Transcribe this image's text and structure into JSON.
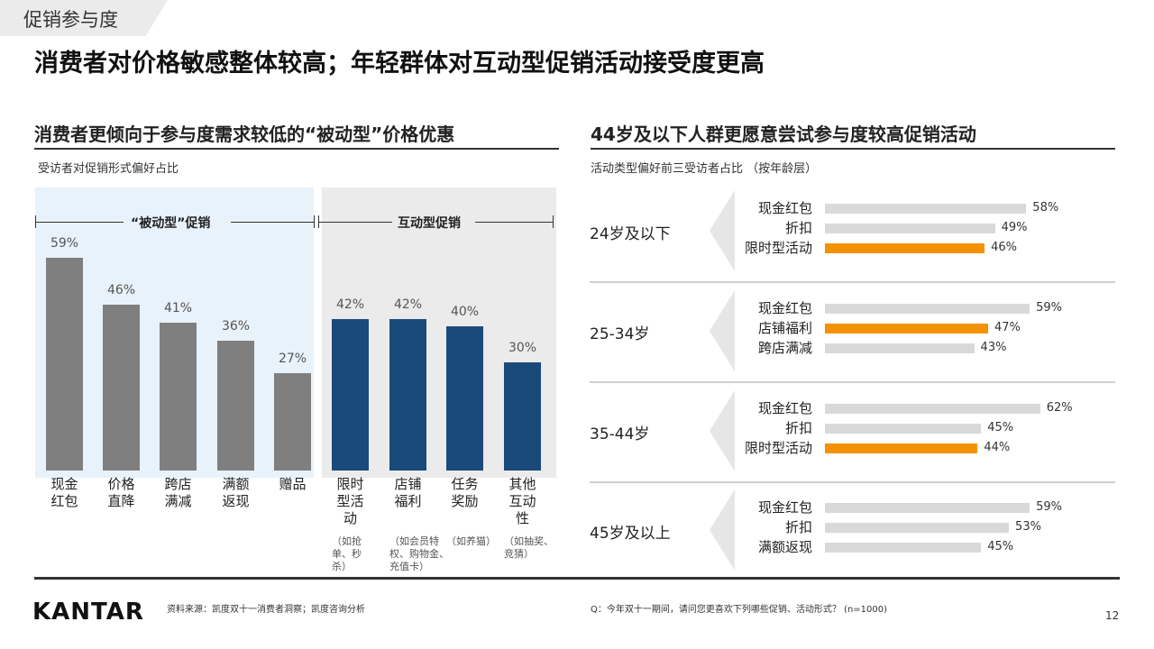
{
  "section_tag": "促销参与度",
  "headline": "消费者对价格敏感整体较高；年轻群体对互动型促销活动接受度更高",
  "left": {
    "title": "消费者更倾向于参与度需求较低的“被动型”价格优惠",
    "caption": "受访者对促销形式偏好占比",
    "group_passive": "“被动型”促销",
    "group_interactive": "互动型促销"
  },
  "right": {
    "title": "44岁及以下人群更愿意尝试参与度较高促销活动",
    "caption": "活动类型偏好前三受访者占比 （按年龄层）"
  },
  "colors": {
    "passive_bar": "#7f7f7f",
    "interactive_bar": "#1a4a7a",
    "highlight_bar": "#f39200",
    "neutral_bar": "#d9d9d9"
  },
  "chart_data": [
    {
      "type": "bar",
      "title": "受访者对促销形式偏好占比",
      "categories": [
        "现金红包",
        "价格直降",
        "跨店满减",
        "满额返现",
        "赠品",
        "限时型活动",
        "店铺福利",
        "任务奖励",
        "其他互动性"
      ],
      "label_lines": [
        [
          "现金",
          "红包"
        ],
        [
          "价格",
          "直降"
        ],
        [
          "跨店",
          "满减"
        ],
        [
          "满额",
          "返现"
        ],
        [
          "赠品"
        ],
        [
          "限时",
          "型活",
          "动"
        ],
        [
          "店铺",
          "福利"
        ],
        [
          "任务",
          "奖励"
        ],
        [
          "其他",
          "互动",
          "性"
        ]
      ],
      "values": [
        59,
        46,
        41,
        36,
        27,
        42,
        42,
        40,
        30
      ],
      "value_labels": [
        "59%",
        "46%",
        "41%",
        "36%",
        "27%",
        "42%",
        "42%",
        "40%",
        "30%"
      ],
      "groups": [
        "被动型",
        "被动型",
        "被动型",
        "被动型",
        "被动型",
        "互动型",
        "互动型",
        "互动型",
        "互动型"
      ],
      "notes": [
        "",
        "",
        "",
        "",
        "",
        "（如抢单、秒杀）",
        "（如会员特权、购物金、充值卡）",
        "（如养猫）",
        "（如抽奖、竞猜）"
      ],
      "note_lines": [
        [],
        [],
        [],
        [],
        [],
        [
          "（如抢",
          "单、秒",
          "杀）"
        ],
        [
          "（如会员特",
          "权、购物金、",
          "充值卡）"
        ],
        [
          "（如养猫）"
        ],
        [
          "（如抽奖、",
          "竞猜）"
        ]
      ],
      "ylim": [
        0,
        70
      ]
    },
    {
      "type": "bar",
      "orientation": "horizontal",
      "title": "活动类型偏好前三受访者占比 （按年龄层）",
      "xlim": [
        0,
        100
      ],
      "groups": [
        {
          "name": "24岁及以下",
          "items": [
            {
              "label": "现金红包",
              "value": 58,
              "text": "58%",
              "highlight": false
            },
            {
              "label": "折扣",
              "value": 49,
              "text": "49%",
              "highlight": false
            },
            {
              "label": "限时型活动",
              "value": 46,
              "text": "46%",
              "highlight": true
            }
          ]
        },
        {
          "name": "25-34岁",
          "items": [
            {
              "label": "现金红包",
              "value": 59,
              "text": "59%",
              "highlight": false
            },
            {
              "label": "店铺福利",
              "value": 47,
              "text": "47%",
              "highlight": true
            },
            {
              "label": "跨店满减",
              "value": 43,
              "text": "43%",
              "highlight": false
            }
          ]
        },
        {
          "name": "35-44岁",
          "items": [
            {
              "label": "现金红包",
              "value": 62,
              "text": "62%",
              "highlight": false
            },
            {
              "label": "折扣",
              "value": 45,
              "text": "45%",
              "highlight": false
            },
            {
              "label": "限时型活动",
              "value": 44,
              "text": "44%",
              "highlight": true
            }
          ]
        },
        {
          "name": "45岁及以上",
          "items": [
            {
              "label": "现金红包",
              "value": 59,
              "text": "59%",
              "highlight": false
            },
            {
              "label": "折扣",
              "value": 53,
              "text": "53%",
              "highlight": false
            },
            {
              "label": "满额返现",
              "value": 45,
              "text": "45%",
              "highlight": false
            }
          ]
        }
      ]
    }
  ],
  "footer": {
    "logo": "KANTAR",
    "source": "资料来源：凯度双十一消费者洞察；凯度咨询分析",
    "question": "Q：今年双十一期间，请问您更喜欢下列哪些促销、活动形式？ (n=1000)",
    "page": "12"
  }
}
